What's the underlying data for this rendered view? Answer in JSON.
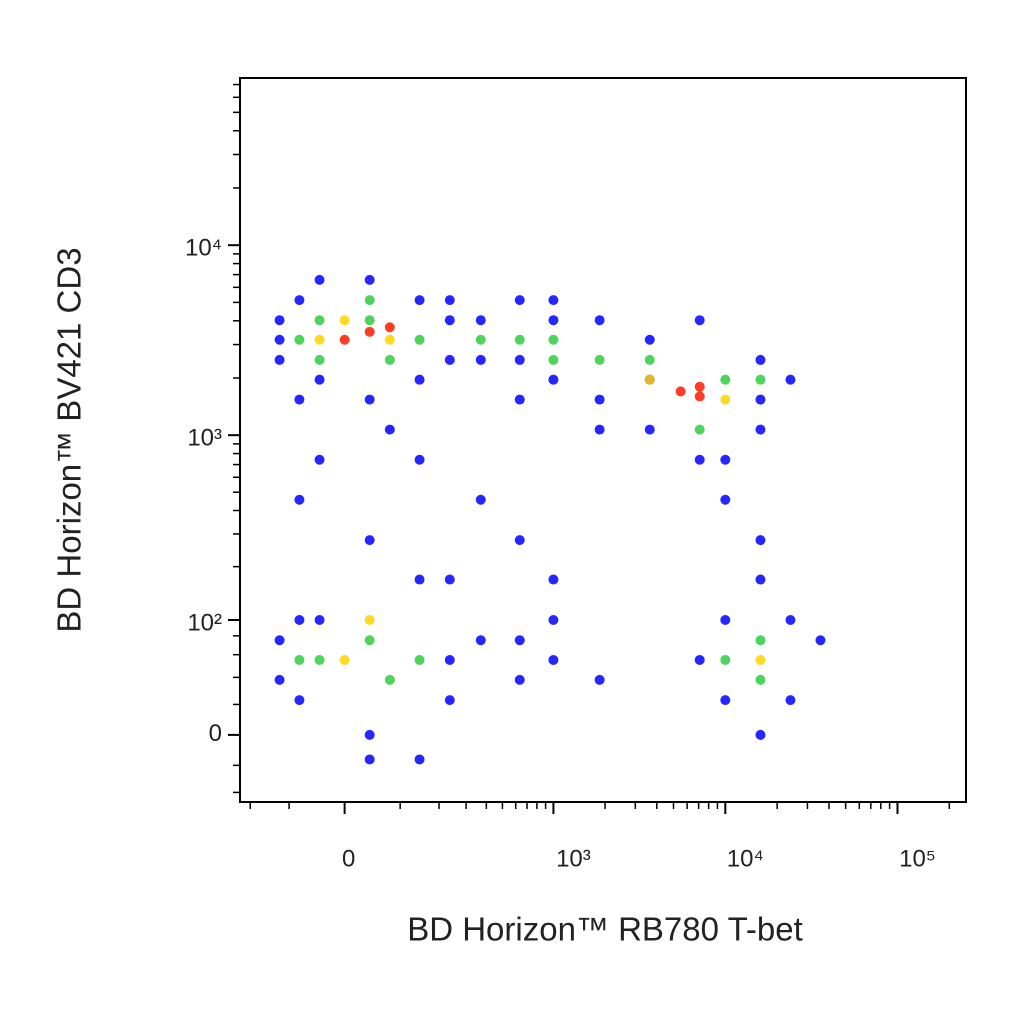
{
  "chart_data": {
    "type": "scatter",
    "x_label": "BD Horizon™ RB780 T-bet",
    "y_label": "BD Horizon™ BV421 CD3",
    "xscale": "biexponential",
    "yscale": "biexponential",
    "xlim": [
      -234,
      250000
    ],
    "ylim": [
      -48,
      75800
    ],
    "xticks": [
      0,
      {
        "value": 1000,
        "label": "10³"
      },
      {
        "value": 10000,
        "label": "10⁴"
      },
      {
        "value": 100000,
        "label": "10⁵"
      }
    ],
    "yticks": [
      0,
      {
        "value": 100,
        "label": "10²"
      },
      {
        "value": 1000,
        "label": "10³"
      },
      {
        "value": 10000,
        "label": "10⁴"
      }
    ],
    "xminorticks": [
      -200,
      -100,
      100,
      200,
      300,
      400,
      500,
      600,
      700,
      800,
      900,
      2000,
      3000,
      4000,
      5000,
      6000,
      7000,
      8000,
      9000,
      20000,
      30000,
      40000,
      50000,
      60000,
      70000,
      80000,
      90000,
      200000
    ],
    "yminorticks": [
      -40,
      -20,
      20,
      40,
      60,
      80,
      200,
      300,
      400,
      500,
      600,
      700,
      800,
      900,
      2000,
      3000,
      4000,
      5000,
      6000,
      7000,
      8000,
      9000,
      20000,
      30000,
      40000,
      50000,
      60000,
      70000
    ],
    "series": [
      {
        "color": "#0000ff",
        "x": [
          -121,
          -79,
          -42,
          42,
          145,
          236,
          -121,
          -79,
          42,
          145,
          236,
          -42,
          79,
          -121,
          236,
          370,
          634,
          634,
          1000,
          1000,
          1860,
          1860,
          3640,
          3640,
          1860,
          634,
          1000,
          370,
          7100,
          16000,
          16000,
          10000,
          7100,
          16000,
          23900,
          3640,
          -79,
          42,
          145,
          370,
          634,
          1000,
          -42,
          236,
          16000,
          10000,
          -121,
          -121,
          -79,
          42,
          145,
          236,
          370,
          -42,
          145,
          -79,
          236,
          42,
          634,
          1000,
          1000,
          1860,
          634,
          7100,
          10000,
          23900,
          35700,
          23900,
          16000,
          10000,
          16000
        ],
        "y": [
          4030,
          5140,
          6570,
          6570,
          5140,
          4030,
          2490,
          1540,
          1540,
          1960,
          2490,
          1960,
          1070,
          3180,
          5140,
          4030,
          5140,
          2490,
          4030,
          1960,
          4030,
          1540,
          3180,
          1070,
          1070,
          1540,
          5140,
          2490,
          4030,
          2490,
          1070,
          742,
          742,
          1540,
          1960,
          1960,
          456,
          278,
          742,
          456,
          278,
          170,
          742,
          170,
          278,
          456,
          75,
          38,
          23,
          0,
          -16,
          55,
          75,
          100,
          170,
          100,
          23,
          -16,
          75,
          55,
          100,
          38,
          38,
          55,
          23,
          100,
          75,
          23,
          170,
          100,
          0
        ]
      },
      {
        "color": "#2ecc40",
        "x": [
          -42,
          42,
          79,
          -42,
          145,
          -79,
          42,
          370,
          634,
          1000,
          1860,
          3640,
          1000,
          10000,
          7100,
          16000,
          -42,
          42,
          79,
          -79,
          145,
          16000,
          10000,
          16000
        ],
        "y": [
          4030,
          4030,
          2490,
          2490,
          3180,
          3180,
          5140,
          3180,
          3180,
          2490,
          2490,
          2490,
          3180,
          1960,
          1070,
          1960,
          55,
          75,
          38,
          55,
          55,
          75,
          55,
          38
        ]
      },
      {
        "color": "#ffd200",
        "x": [
          0,
          79,
          -42,
          3640,
          10000,
          0,
          16000,
          42
        ],
        "y": [
          4030,
          3180,
          3180,
          1960,
          1540,
          55,
          55,
          100
        ]
      },
      {
        "color": "#ff1a00",
        "x": [
          42,
          0,
          79,
          7100,
          5500,
          7100
        ],
        "y": [
          3500,
          3180,
          3700,
          1800,
          1700,
          1600
        ]
      }
    ]
  }
}
